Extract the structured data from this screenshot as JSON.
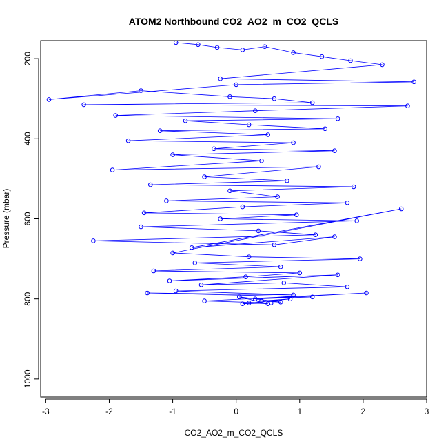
{
  "chart_data": {
    "type": "scatter",
    "title": "ATOM2 Northbound CO2_AO2_m_CO2_QCLS",
    "xlabel": "CO2_AO2_m_CO2_QCLS",
    "ylabel": "Pressure (mbar)",
    "xlim": [
      -3.08,
      3.0
    ],
    "ylim": [
      1045,
      155
    ],
    "y_reversed": true,
    "x_ticks": [
      -3,
      -2,
      -1,
      0,
      1,
      2,
      3
    ],
    "x_tick_labels": [
      "-3",
      "-2",
      "-1",
      "0",
      "1",
      "2",
      "3"
    ],
    "y_ticks": [
      200,
      400,
      600,
      800,
      1000
    ],
    "y_tick_labels": [
      "200",
      "400",
      "600",
      "800",
      "1000"
    ],
    "grid": false,
    "legend": "none",
    "series_color": "#0000ff",
    "marker": "open-circle",
    "connected": true,
    "series": [
      {
        "x": [
          -0.95,
          -0.6,
          -0.3,
          0.1,
          0.45,
          0.9,
          1.35,
          1.8,
          2.3,
          -0.25,
          2.8,
          0.0,
          -2.95,
          -1.5,
          -0.1,
          0.6,
          1.2,
          -2.4,
          2.7,
          0.3,
          -1.9,
          1.6,
          -0.8,
          0.2,
          1.4,
          -1.2,
          0.5,
          -1.7,
          0.9,
          -0.35,
          1.55,
          -1.0,
          0.4,
          -1.95,
          1.3,
          -0.5,
          0.8,
          -1.35,
          1.85,
          -0.1,
          0.65,
          -1.1,
          1.75,
          0.1,
          -1.45,
          0.95,
          -0.25,
          1.9,
          -1.5,
          0.35,
          1.25,
          -2.25,
          0.6,
          1.55,
          -0.7,
          2.6,
          -1.0,
          0.2,
          1.95,
          -0.65,
          0.7,
          -1.3,
          1.0,
          0.15,
          -1.05,
          1.6,
          -0.55,
          0.75,
          1.75,
          -0.95,
          0.9,
          -1.4,
          1.2,
          0.3,
          2.05,
          -0.5,
          0.55,
          0.1,
          0.85,
          0.4,
          0.7,
          0.05,
          0.5,
          0.2
        ],
        "y": [
          160,
          165,
          172,
          178,
          170,
          185,
          195,
          205,
          215,
          250,
          258,
          265,
          302,
          280,
          295,
          300,
          310,
          315,
          318,
          330,
          342,
          350,
          355,
          365,
          375,
          380,
          390,
          405,
          410,
          425,
          430,
          440,
          455,
          478,
          470,
          495,
          505,
          515,
          520,
          530,
          545,
          555,
          560,
          570,
          585,
          590,
          600,
          605,
          620,
          630,
          640,
          655,
          665,
          645,
          672,
          575,
          685,
          695,
          700,
          710,
          720,
          730,
          735,
          745,
          755,
          740,
          765,
          760,
          770,
          780,
          790,
          785,
          795,
          800,
          785,
          805,
          810,
          812,
          800,
          805,
          808,
          795,
          812,
          810
        ]
      }
    ]
  }
}
